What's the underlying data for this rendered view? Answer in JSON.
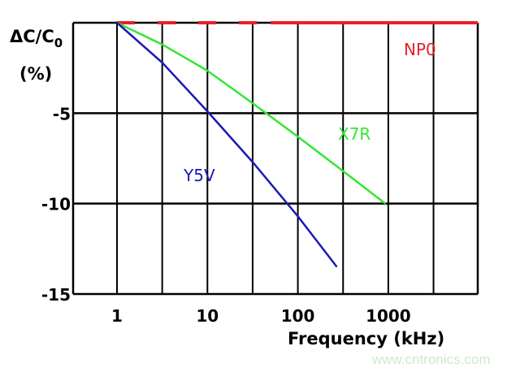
{
  "chart_data": {
    "type": "line",
    "title": "",
    "xlabel": "Frequency (kHz)",
    "ylabel": "ΔC/C0 (%)",
    "ylabel_main": "ΔC/C",
    "ylabel_sub": "0",
    "ylabel_unit": "(%)",
    "x_scale": "log",
    "xlim": [
      0.6,
      10000
    ],
    "ylim": [
      -15,
      0
    ],
    "x_ticks": [
      1,
      10,
      100,
      1000
    ],
    "x_tick_labels": [
      "1",
      "10",
      "100",
      "1000"
    ],
    "y_ticks": [
      -5,
      -10,
      -15
    ],
    "y_tick_labels": [
      "-5",
      "-10",
      "-15"
    ],
    "grid": true,
    "series": [
      {
        "name": "NP0",
        "color": "#e8202a",
        "x": [
          1,
          10,
          100,
          1000,
          10000
        ],
        "y": [
          0,
          0,
          0,
          0,
          0
        ],
        "style": "dashed-then-solid"
      },
      {
        "name": "X7R",
        "color": "#33e633",
        "x": [
          1,
          3.16,
          10,
          31.6,
          100,
          316,
          930
        ],
        "y": [
          0,
          -1.2,
          -2.65,
          -4.45,
          -6.3,
          -8.2,
          -10
        ]
      },
      {
        "name": "Y5V",
        "color": "#1a1ab8",
        "x": [
          1,
          3.16,
          10,
          31.6,
          100,
          270
        ],
        "y": [
          0,
          -2.2,
          -4.9,
          -7.7,
          -10.7,
          -13.5
        ]
      }
    ]
  },
  "watermark": "www.cntronics.com"
}
